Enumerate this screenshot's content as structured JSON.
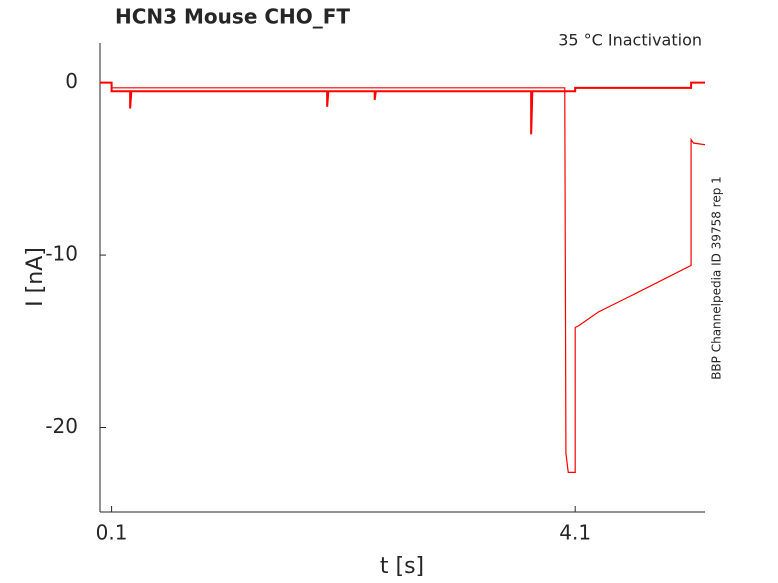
{
  "chart_data": {
    "type": "line",
    "title": "HCN3  Mouse  CHO_FT",
    "subtitle": "35 °C  Inactivation",
    "annotation": "BBP Channelpedia ID 39758 rep 1",
    "x_label": "t [s]",
    "y_label": "I [nA]",
    "xlim": [
      0,
      5.22
    ],
    "ylim": [
      -24.9,
      2.3
    ],
    "xticks": [
      0.1,
      4.1
    ],
    "yticks": [
      0,
      -10,
      -20
    ],
    "grid": false,
    "series": [
      {
        "color": "#ff0000",
        "x": [
          0,
          0.1,
          0.1,
          0.26,
          0.26,
          0.27,
          1.96,
          1.96,
          1.97,
          2.37,
          2.37,
          2.38,
          3.72,
          3.72,
          3.73,
          4.1,
          4.1,
          5.1,
          5.1,
          5.22
        ],
        "values": [
          0,
          0,
          -0.5,
          -0.5,
          -1.5,
          -0.5,
          -0.5,
          -1.4,
          -0.5,
          -0.5,
          -1.0,
          -0.5,
          -0.5,
          -3.0,
          -0.5,
          -0.5,
          -0.3,
          -0.3,
          0,
          0
        ]
      },
      {
        "color": "#ff0000",
        "x": [
          0,
          0.1,
          0.1,
          4.01,
          4.02,
          4.04,
          4.1,
          4.1,
          4.13,
          4.3,
          4.6,
          5.1,
          5.1,
          5.12,
          5.22
        ],
        "values": [
          0,
          0,
          -0.3,
          -0.3,
          -21.5,
          -22.6,
          -22.6,
          -14.2,
          -14.1,
          -13.3,
          -12.3,
          -10.6,
          -3.3,
          -3.5,
          -3.6
        ]
      }
    ]
  }
}
